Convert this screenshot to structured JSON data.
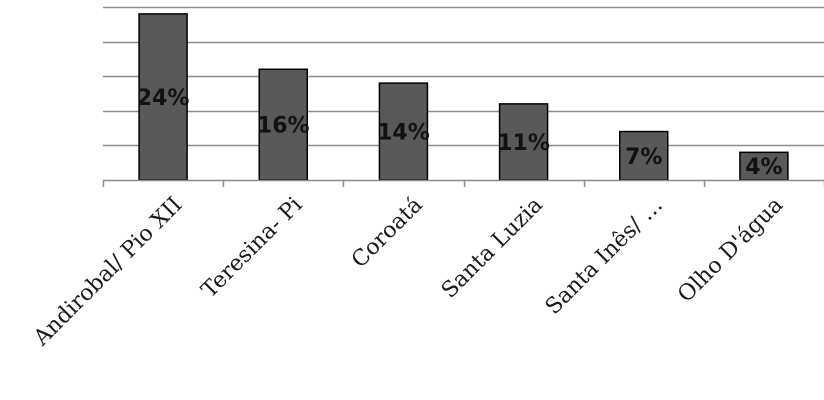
{
  "chart_data": {
    "type": "bar",
    "categories": [
      "Andirobal/ Pio XII",
      "Teresina- Pi",
      "Coroatá",
      "Santa Luzia",
      "Santa Inês/ …",
      "Olho D'água"
    ],
    "values": [
      24,
      16,
      14,
      11,
      7,
      4
    ],
    "value_labels": [
      "24%",
      "16%",
      "14%",
      "11%",
      "7%",
      "4%"
    ],
    "ylim": [
      0,
      25
    ],
    "grid": true,
    "legend": "none",
    "bar_color": "#595959",
    "title": "",
    "xlabel": "",
    "ylabel": ""
  }
}
